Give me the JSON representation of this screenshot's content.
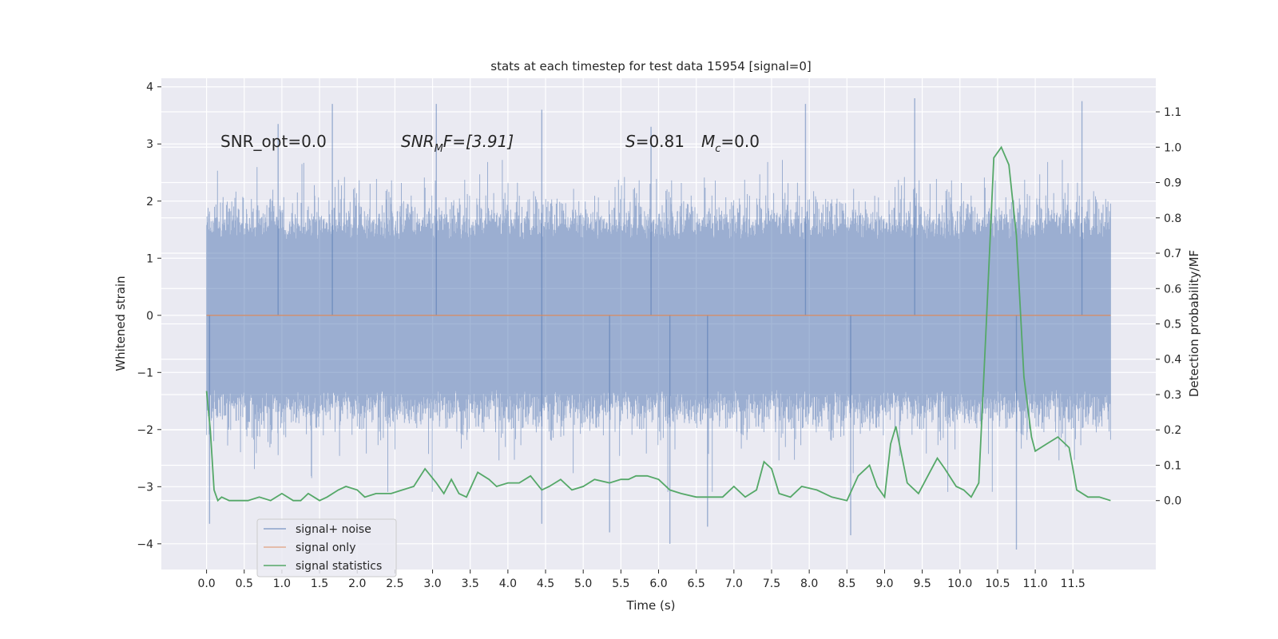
{
  "chart_data": {
    "type": "line",
    "title": "stats at each timestep for test data 15954 [signal=0]",
    "xlabel": "Time (s)",
    "ylabel": "Whitened strain",
    "y2label": "Detection probability/MF",
    "xlim": [
      -0.6,
      12.6
    ],
    "ylim": [
      -4.45,
      4.15
    ],
    "y2lim": [
      -0.195,
      1.195
    ],
    "x_ticks": [
      0.0,
      0.5,
      1.0,
      1.5,
      2.0,
      2.5,
      3.0,
      3.5,
      4.0,
      4.5,
      5.0,
      5.5,
      6.0,
      6.5,
      7.0,
      7.5,
      8.0,
      8.5,
      9.0,
      9.5,
      10.0,
      10.5,
      11.0,
      11.5
    ],
    "x_tick_labels": [
      "0.0",
      "0.5",
      "1.0",
      "1.5",
      "2.0",
      "2.5",
      "3.0",
      "3.5",
      "4.0",
      "4.5",
      "5.0",
      "5.5",
      "6.0",
      "6.5",
      "7.0",
      "7.5",
      "8.0",
      "8.5",
      "9.0",
      "9.5",
      "10.0",
      "10.5",
      "11.0",
      "11.5"
    ],
    "y_ticks": [
      -4,
      -3,
      -2,
      -1,
      0,
      1,
      2,
      3,
      4
    ],
    "y_tick_labels": [
      "−4",
      "−3",
      "−2",
      "−1",
      "0",
      "1",
      "2",
      "3",
      "4"
    ],
    "y2_ticks": [
      0.0,
      0.1,
      0.2,
      0.3,
      0.4,
      0.5,
      0.6,
      0.7,
      0.8,
      0.9,
      1.0,
      1.1
    ],
    "y2_tick_labels": [
      "0.0",
      "0.1",
      "0.2",
      "0.3",
      "0.4",
      "0.5",
      "0.6",
      "0.7",
      "0.8",
      "0.9",
      "1.0",
      "1.1"
    ],
    "grid": true,
    "legend_position": "lower-left",
    "annotations": {
      "snr_opt": "SNR_opt=0.0",
      "snr_mf_symbol": "SNR",
      "snr_mf_sub": "M",
      "snr_mf_rest": "F=[3.91]",
      "s_symbol": "S",
      "s_value": "=0.81",
      "mc_symbol": "M",
      "mc_sub": "c",
      "mc_value": "=0.0"
    },
    "series": [
      {
        "name": "signal+ noise",
        "color": "#4c72b0",
        "axis": "left",
        "x_range": [
          0.0,
          12.0
        ],
        "band_low": -1.3,
        "band_high": 1.3,
        "notable_peaks": [
          {
            "x": 1.67,
            "y": 3.7
          },
          {
            "x": 3.05,
            "y": 3.7
          },
          {
            "x": 4.45,
            "y": 3.6
          },
          {
            "x": 7.95,
            "y": 3.7
          },
          {
            "x": 9.4,
            "y": 3.8
          },
          {
            "x": 11.62,
            "y": 3.75
          },
          {
            "x": 0.95,
            "y": 3.35
          },
          {
            "x": 5.9,
            "y": 3.3
          }
        ],
        "notable_dips": [
          {
            "x": 0.04,
            "y": -3.65
          },
          {
            "x": 4.45,
            "y": -3.65
          },
          {
            "x": 6.15,
            "y": -4.0
          },
          {
            "x": 5.35,
            "y": -3.8
          },
          {
            "x": 8.55,
            "y": -3.85
          },
          {
            "x": 10.75,
            "y": -4.1
          },
          {
            "x": 6.65,
            "y": -3.7
          }
        ]
      },
      {
        "name": "signal only",
        "color": "#dd8452",
        "axis": "left",
        "x": [
          0.0,
          12.0
        ],
        "y": [
          0.0,
          0.0
        ]
      },
      {
        "name": "signal statistics",
        "color": "#55a868",
        "axis": "right",
        "x": [
          0.0,
          0.05,
          0.1,
          0.15,
          0.2,
          0.3,
          0.4,
          0.55,
          0.7,
          0.85,
          1.0,
          1.15,
          1.25,
          1.35,
          1.5,
          1.6,
          1.75,
          1.85,
          2.0,
          2.1,
          2.25,
          2.45,
          2.6,
          2.75,
          2.9,
          3.05,
          3.15,
          3.25,
          3.35,
          3.45,
          3.6,
          3.75,
          3.85,
          4.0,
          4.15,
          4.3,
          4.45,
          4.55,
          4.7,
          4.85,
          5.0,
          5.15,
          5.35,
          5.5,
          5.6,
          5.7,
          5.85,
          6.0,
          6.15,
          6.3,
          6.5,
          6.65,
          6.85,
          7.0,
          7.15,
          7.3,
          7.4,
          7.5,
          7.6,
          7.75,
          7.9,
          8.1,
          8.3,
          8.5,
          8.65,
          8.8,
          8.9,
          9.0,
          9.08,
          9.15,
          9.3,
          9.45,
          9.6,
          9.7,
          9.8,
          9.95,
          10.05,
          10.15,
          10.25,
          10.35,
          10.45,
          10.55,
          10.65,
          10.75,
          10.85,
          10.95,
          11.0,
          11.15,
          11.3,
          11.45,
          11.55,
          11.7,
          11.85,
          12.0
        ],
        "y": [
          0.31,
          0.2,
          0.03,
          0.0,
          0.01,
          0.0,
          0.0,
          0.0,
          0.01,
          0.0,
          0.02,
          0.0,
          0.0,
          0.02,
          0.0,
          0.01,
          0.03,
          0.04,
          0.03,
          0.01,
          0.02,
          0.02,
          0.03,
          0.04,
          0.09,
          0.05,
          0.02,
          0.06,
          0.02,
          0.01,
          0.08,
          0.06,
          0.04,
          0.05,
          0.05,
          0.07,
          0.03,
          0.04,
          0.06,
          0.03,
          0.04,
          0.06,
          0.05,
          0.06,
          0.06,
          0.07,
          0.07,
          0.06,
          0.03,
          0.02,
          0.01,
          0.01,
          0.01,
          0.04,
          0.01,
          0.03,
          0.11,
          0.09,
          0.02,
          0.01,
          0.04,
          0.03,
          0.01,
          0.0,
          0.07,
          0.1,
          0.04,
          0.01,
          0.16,
          0.21,
          0.05,
          0.02,
          0.08,
          0.12,
          0.09,
          0.04,
          0.03,
          0.01,
          0.05,
          0.5,
          0.97,
          1.0,
          0.95,
          0.75,
          0.35,
          0.18,
          0.14,
          0.16,
          0.18,
          0.15,
          0.03,
          0.01,
          0.01,
          0.0
        ]
      }
    ]
  }
}
